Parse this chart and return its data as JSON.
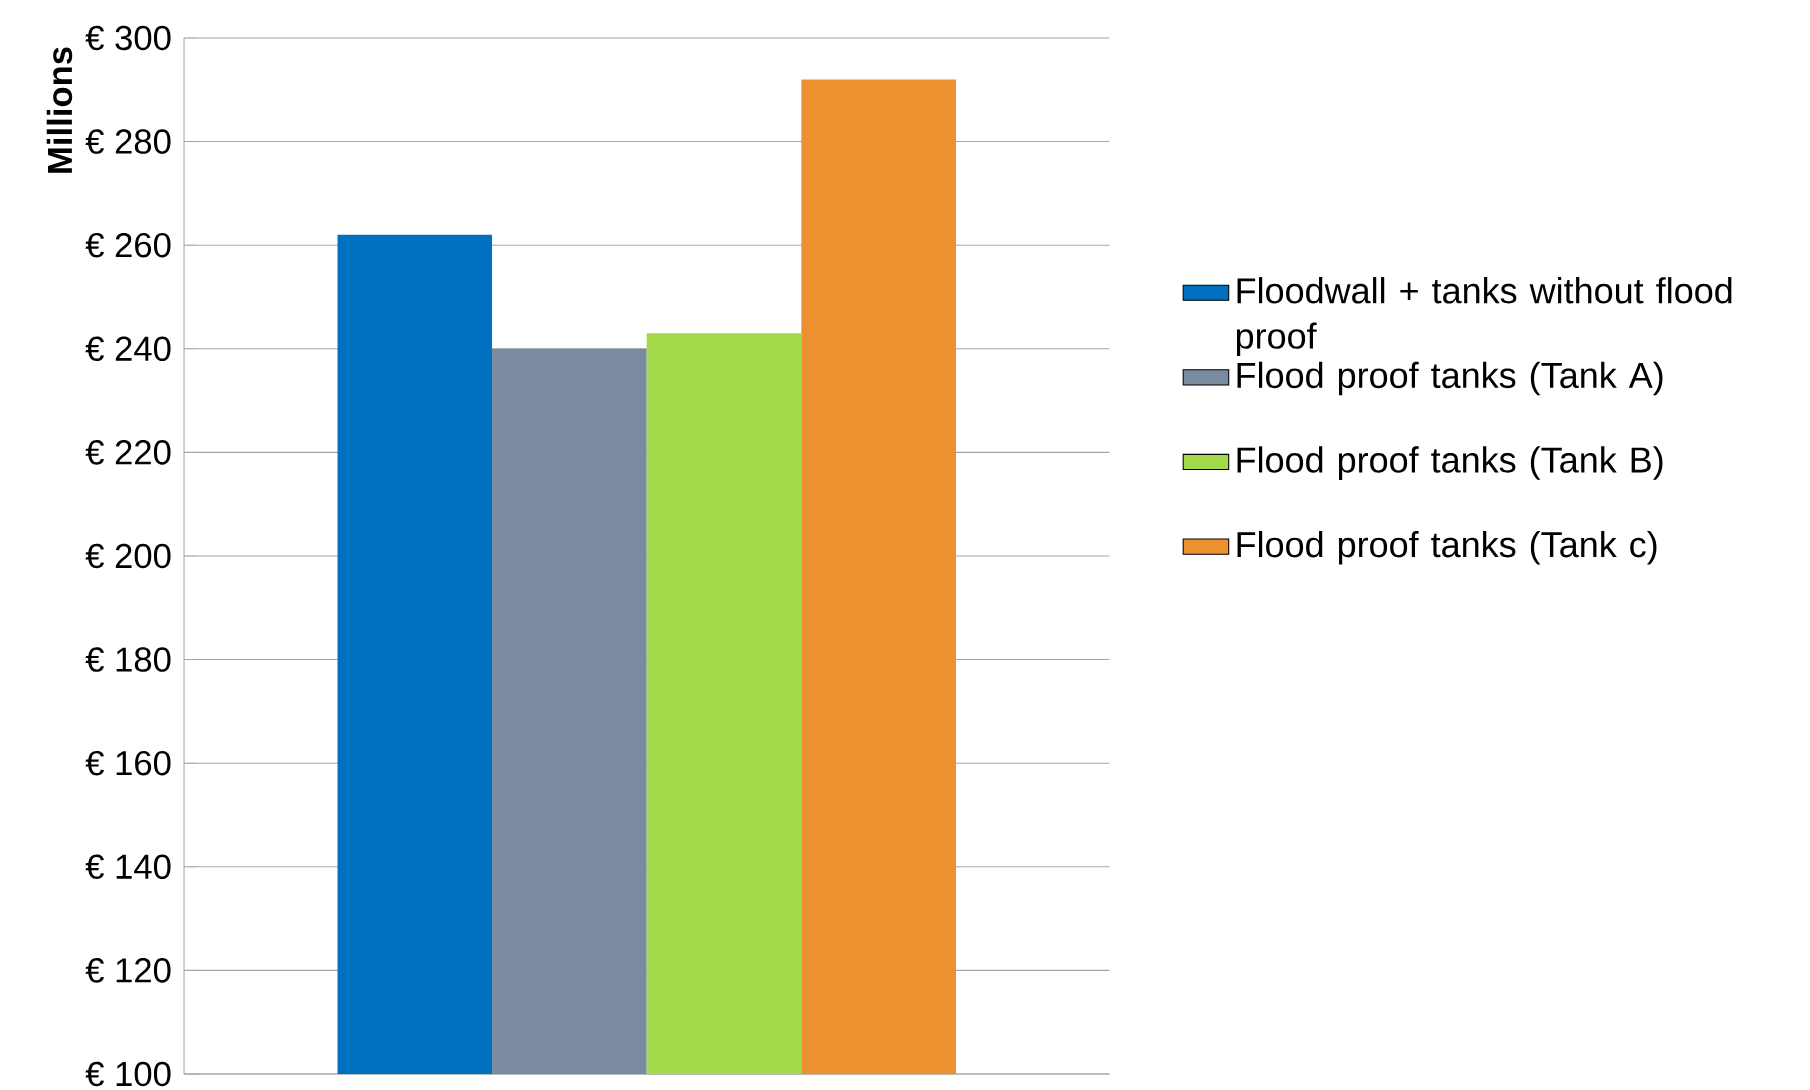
{
  "chart_data": {
    "type": "bar",
    "ylabel": "Millions",
    "categories": [
      null
    ],
    "series": [
      {
        "name": "Floodwall + tanks without flood proof",
        "color": "#0070c0",
        "values": [
          262
        ]
      },
      {
        "name": "Flood proof tanks (Tank A)",
        "color": "#7a8ba0",
        "values": [
          240
        ]
      },
      {
        "name": "Flood proof tanks (Tank B)",
        "color": "#a3d94a",
        "values": [
          243
        ]
      },
      {
        "name": "Flood proof tanks (Tank c)",
        "color": "#ed9130",
        "values": [
          292
        ]
      }
    ],
    "ylim": [
      100,
      300
    ],
    "yticks": [
      {
        "value": 100,
        "label": "€ 100"
      },
      {
        "value": 120,
        "label": "€ 120"
      },
      {
        "value": 140,
        "label": "€ 140"
      },
      {
        "value": 160,
        "label": "€ 160"
      },
      {
        "value": 180,
        "label": "€ 180"
      },
      {
        "value": 200,
        "label": "€ 200"
      },
      {
        "value": 220,
        "label": "€ 220"
      },
      {
        "value": 240,
        "label": "€ 240"
      },
      {
        "value": 260,
        "label": "€ 260"
      },
      {
        "value": 280,
        "label": "€ 280"
      },
      {
        "value": 300,
        "label": "€ 300"
      }
    ],
    "grid": "y",
    "legend": "right"
  }
}
